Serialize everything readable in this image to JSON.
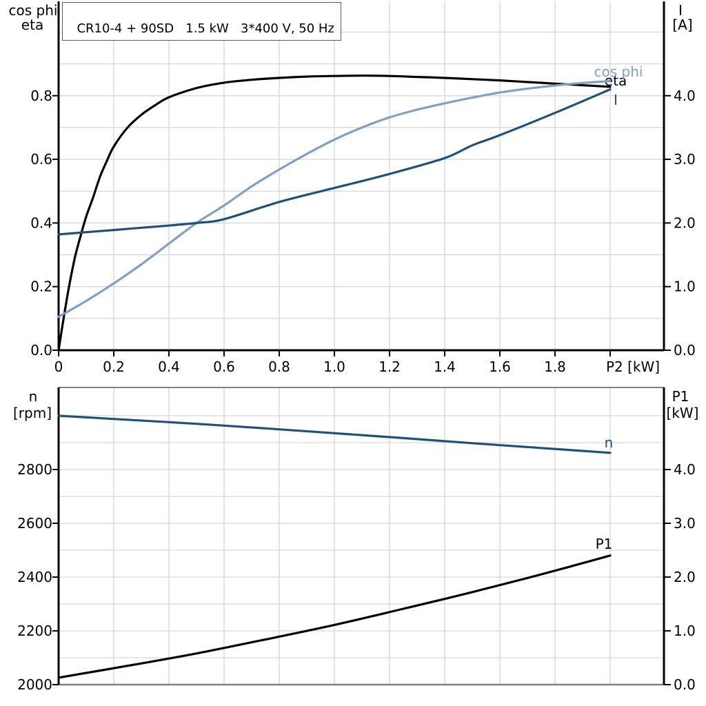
{
  "chart_title": "CR10-4 + 90SD   1.5 kW   3*400 V, 50 Hz",
  "colors": {
    "black": "#000000",
    "dark_blue": "#1d4f7f",
    "light_blue": "#7f9fc6",
    "grid": "#d6d6d6",
    "border_gray": "#808080",
    "title_border": "#58595b"
  },
  "chart_data": [
    {
      "type": "line",
      "title": "CR10-4 + 90SD   1.5 kW   3*400 V, 50 Hz",
      "x_axis": {
        "label": "P2 [kW]",
        "min": 0,
        "max": 2.2,
        "grid_step": 0.2,
        "ticks": [
          [
            0,
            "0"
          ],
          [
            0.2,
            "0.2"
          ],
          [
            0.4,
            "0.4"
          ],
          [
            0.6,
            "0.6"
          ],
          [
            0.8,
            "0.8"
          ],
          [
            1.0,
            "1.0"
          ],
          [
            1.2,
            "1.2"
          ],
          [
            1.4,
            "1.4"
          ],
          [
            1.6,
            "1.6"
          ],
          [
            1.8,
            "1.8"
          ]
        ],
        "axis_label_at": 2.0
      },
      "left_axis": {
        "label_lines": [
          "cos phi",
          "eta"
        ],
        "min": 0,
        "minor_grid_step": 0.1,
        "grid_max": 1.0,
        "ticks": [
          [
            0,
            "0.0"
          ],
          [
            0.2,
            "0.2"
          ],
          [
            0.4,
            "0.4"
          ],
          [
            0.6,
            "0.6"
          ],
          [
            0.8,
            "0.8"
          ]
        ]
      },
      "right_axis": {
        "label_lines": [
          "I",
          "[A]"
        ],
        "min": 0,
        "ticks": [
          [
            0,
            "0.0"
          ],
          [
            1,
            "1.0"
          ],
          [
            2,
            "2.0"
          ],
          [
            3,
            "3.0"
          ],
          [
            4,
            "4.0"
          ]
        ]
      },
      "series": [
        {
          "name": "eta",
          "axis": "left",
          "color_key": "black",
          "points": [
            [
              0,
              0
            ],
            [
              0.02,
              0.11
            ],
            [
              0.04,
              0.21
            ],
            [
              0.06,
              0.295
            ],
            [
              0.08,
              0.36
            ],
            [
              0.1,
              0.42
            ],
            [
              0.125,
              0.48
            ],
            [
              0.15,
              0.545
            ],
            [
              0.175,
              0.595
            ],
            [
              0.2,
              0.64
            ],
            [
              0.25,
              0.7
            ],
            [
              0.3,
              0.74
            ],
            [
              0.35,
              0.77
            ],
            [
              0.4,
              0.795
            ],
            [
              0.5,
              0.824
            ],
            [
              0.6,
              0.841
            ],
            [
              0.7,
              0.85
            ],
            [
              0.8,
              0.856
            ],
            [
              0.9,
              0.86
            ],
            [
              1.0,
              0.862
            ],
            [
              1.1,
              0.863
            ],
            [
              1.2,
              0.862
            ],
            [
              1.3,
              0.859
            ],
            [
              1.4,
              0.856
            ],
            [
              1.5,
              0.852
            ],
            [
              1.6,
              0.848
            ],
            [
              1.7,
              0.843
            ],
            [
              1.8,
              0.838
            ],
            [
              1.9,
              0.833
            ],
            [
              2.0,
              0.828
            ]
          ]
        },
        {
          "name": "cos phi",
          "axis": "left",
          "color_key": "light_blue",
          "points": [
            [
              0,
              0.105
            ],
            [
              0.1,
              0.155
            ],
            [
              0.2,
              0.21
            ],
            [
              0.3,
              0.27
            ],
            [
              0.4,
              0.335
            ],
            [
              0.5,
              0.4
            ],
            [
              0.6,
              0.455
            ],
            [
              0.7,
              0.515
            ],
            [
              0.8,
              0.568
            ],
            [
              0.9,
              0.617
            ],
            [
              1.0,
              0.662
            ],
            [
              1.1,
              0.7
            ],
            [
              1.2,
              0.732
            ],
            [
              1.3,
              0.756
            ],
            [
              1.4,
              0.776
            ],
            [
              1.5,
              0.794
            ],
            [
              1.6,
              0.81
            ],
            [
              1.7,
              0.822
            ],
            [
              1.8,
              0.832
            ],
            [
              1.9,
              0.84
            ],
            [
              2.0,
              0.846
            ]
          ]
        },
        {
          "name": "I",
          "axis": "right",
          "color_key": "dark_blue",
          "points": [
            [
              0,
              1.82
            ],
            [
              0.2,
              1.89
            ],
            [
              0.4,
              1.96
            ],
            [
              0.5,
              2.0
            ],
            [
              0.6,
              2.06
            ],
            [
              0.8,
              2.33
            ],
            [
              1.0,
              2.55
            ],
            [
              1.2,
              2.77
            ],
            [
              1.4,
              3.02
            ],
            [
              1.5,
              3.22
            ],
            [
              1.6,
              3.38
            ],
            [
              1.8,
              3.73
            ],
            [
              2.0,
              4.1
            ]
          ]
        }
      ]
    },
    {
      "type": "line",
      "x_axis": {
        "label": "",
        "min": 0,
        "max": 2.2,
        "grid_step": 0.2,
        "ticks": []
      },
      "left_axis": {
        "label_lines": [
          "n",
          "[rpm]"
        ],
        "min": 2000,
        "minor_grid_step": 100,
        "grid_max": 3000,
        "ticks": [
          [
            2000,
            "2000"
          ],
          [
            2200,
            "2200"
          ],
          [
            2400,
            "2400"
          ],
          [
            2600,
            "2600"
          ],
          [
            2800,
            "2800"
          ]
        ]
      },
      "right_axis": {
        "label_lines": [
          "P1",
          "[kW]"
        ],
        "min": 0,
        "ticks": [
          [
            0,
            "0.0"
          ],
          [
            1,
            "1.0"
          ],
          [
            2,
            "2.0"
          ],
          [
            3,
            "3.0"
          ],
          [
            4,
            "4.0"
          ]
        ]
      },
      "series": [
        {
          "name": "n",
          "axis": "left",
          "color_key": "dark_blue",
          "points": [
            [
              0,
              3000
            ],
            [
              0.25,
              2985
            ],
            [
              0.5,
              2970
            ],
            [
              0.75,
              2953
            ],
            [
              1.0,
              2935
            ],
            [
              1.25,
              2917
            ],
            [
              1.5,
              2898
            ],
            [
              1.75,
              2880
            ],
            [
              2.0,
              2862
            ]
          ]
        },
        {
          "name": "P1",
          "axis": "right",
          "color_key": "black",
          "points": [
            [
              0,
              0.13
            ],
            [
              0.25,
              0.35
            ],
            [
              0.5,
              0.58
            ],
            [
              0.75,
              0.84
            ],
            [
              1.0,
              1.11
            ],
            [
              1.25,
              1.41
            ],
            [
              1.5,
              1.72
            ],
            [
              1.75,
              2.05
            ],
            [
              2.0,
              2.4
            ]
          ]
        }
      ]
    }
  ]
}
